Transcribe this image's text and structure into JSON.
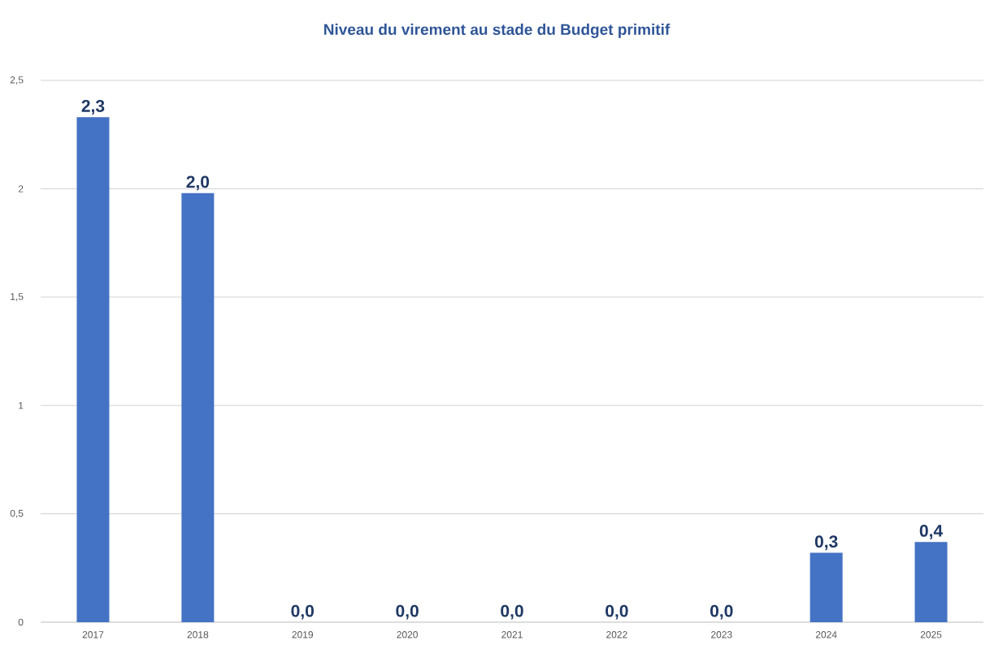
{
  "chart_data": {
    "type": "bar",
    "title": "Niveau du virement au stade du Budget primitif",
    "categories": [
      "2017",
      "2018",
      "2019",
      "2020",
      "2021",
      "2022",
      "2023",
      "2024",
      "2025"
    ],
    "values": [
      2.33,
      1.98,
      0,
      0,
      0,
      0,
      0,
      0.32,
      0.37
    ],
    "value_labels": [
      "2,3",
      "2,0",
      "0,0",
      "0,0",
      "0,0",
      "0,0",
      "0,0",
      "0,3",
      "0,4"
    ],
    "color": "#4472c4",
    "ylim": [
      0,
      2.5
    ],
    "yticks": [
      0,
      {
        "value": 0.5,
        "label": "0,5"
      },
      1,
      {
        "value": 1.5,
        "label": "1,5"
      },
      2,
      {
        "value": 2.5,
        "label": "2,5"
      }
    ],
    "grid": "y"
  }
}
